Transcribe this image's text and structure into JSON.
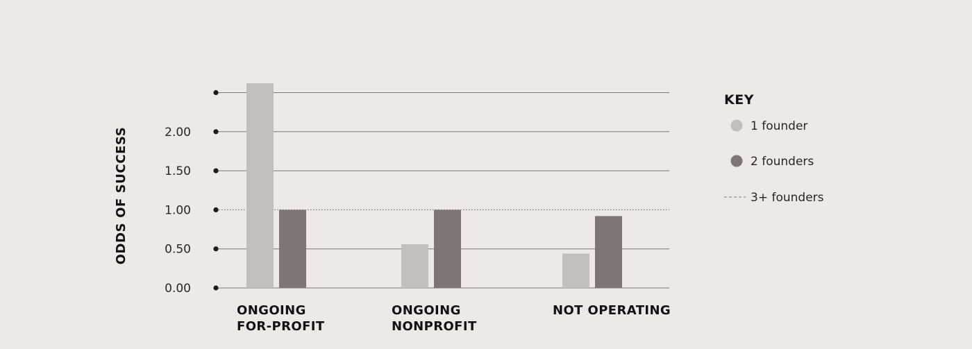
{
  "chart_data": {
    "type": "bar",
    "ylabel": "ODDS OF SUCCESS",
    "ylim": [
      0,
      2.5
    ],
    "yticks": [
      0.0,
      0.5,
      1.0,
      1.5,
      2.0,
      2.5
    ],
    "ytick_labels": [
      "0.00",
      "0.50",
      "1.00",
      "1.50",
      "2.00",
      ""
    ],
    "reference_line": {
      "value": 1.0,
      "style": "dotted",
      "label": "3+ founders"
    },
    "categories": [
      [
        "ONGOING",
        "FOR-PROFIT"
      ],
      [
        "ONGOING",
        "NONPROFIT"
      ],
      [
        "NOT OPERATING"
      ]
    ],
    "series": [
      {
        "name": "1 founder",
        "values": [
          2.62,
          0.56,
          0.44
        ],
        "color": "#c4bebb"
      },
      {
        "name": "2 founders",
        "values": [
          1.0,
          1.0,
          0.92
        ],
        "color": "#7f7574"
      }
    ],
    "legend": {
      "title": "KEY",
      "placement": "right",
      "entries": [
        {
          "label": "1 founder",
          "marker": "dot",
          "color": "#c4bebb"
        },
        {
          "label": "2 founders",
          "marker": "dot",
          "color": "#7f7574"
        },
        {
          "label": "3+ founders",
          "marker": "dashed-line",
          "color": "#9a9190"
        }
      ]
    },
    "grid": true,
    "colors": {
      "grid": "#7d7574",
      "tick_dot": "#1f1b1a",
      "background": "#eee8e7"
    }
  }
}
